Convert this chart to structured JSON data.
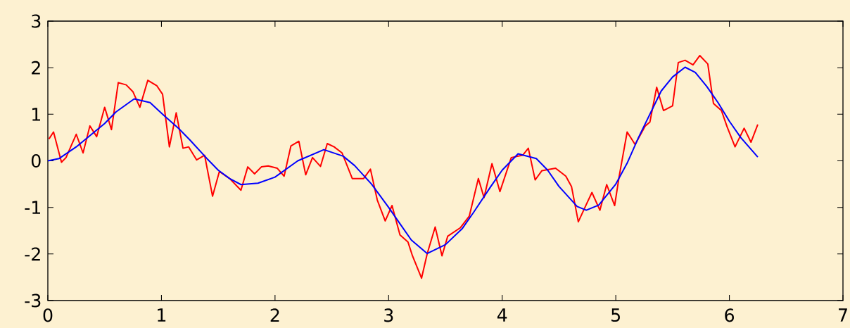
{
  "chart_data": {
    "type": "line",
    "xlim": [
      0,
      7
    ],
    "ylim": [
      -3,
      3
    ],
    "xticks": [
      0,
      1,
      2,
      3,
      4,
      5,
      6,
      7
    ],
    "yticks": [
      -3,
      -2,
      -1,
      0,
      1,
      2,
      3
    ],
    "grid": false,
    "marker": "none",
    "series": [
      {
        "color": "#ff0000",
        "x": [
          0.01,
          0.05,
          0.12,
          0.16,
          0.21,
          0.25,
          0.31,
          0.37,
          0.43,
          0.5,
          0.56,
          0.62,
          0.69,
          0.75,
          0.81,
          0.88,
          0.96,
          1.01,
          1.07,
          1.13,
          1.19,
          1.24,
          1.31,
          1.38,
          1.45,
          1.51,
          1.6,
          1.7,
          1.76,
          1.82,
          1.88,
          1.94,
          2.02,
          2.08,
          2.14,
          2.21,
          2.27,
          2.33,
          2.4,
          2.46,
          2.52,
          2.59,
          2.68,
          2.78,
          2.84,
          2.9,
          2.97,
          3.03,
          3.1,
          3.17,
          3.21,
          3.29,
          3.34,
          3.41,
          3.47,
          3.52,
          3.63,
          3.71,
          3.79,
          3.84,
          3.91,
          3.98,
          4.08,
          4.18,
          4.23,
          4.29,
          4.35,
          4.47,
          4.56,
          4.61,
          4.67,
          4.74,
          4.79,
          4.86,
          4.92,
          4.99,
          5.03,
          5.1,
          5.17,
          5.26,
          5.3,
          5.36,
          5.42,
          5.5,
          5.55,
          5.61,
          5.68,
          5.74,
          5.81,
          5.86,
          5.93,
          5.98,
          6.05,
          6.13,
          6.19,
          6.25
        ],
        "values": [
          0.47,
          0.62,
          -0.03,
          0.07,
          0.35,
          0.57,
          0.17,
          0.75,
          0.52,
          1.15,
          0.67,
          1.68,
          1.63,
          1.48,
          1.15,
          1.73,
          1.61,
          1.43,
          0.3,
          1.03,
          0.27,
          0.3,
          0.02,
          0.12,
          -0.76,
          -0.23,
          -0.38,
          -0.63,
          -0.13,
          -0.28,
          -0.13,
          -0.11,
          -0.16,
          -0.33,
          0.32,
          0.42,
          -0.3,
          0.07,
          -0.12,
          0.37,
          0.3,
          0.17,
          -0.38,
          -0.38,
          -0.18,
          -0.84,
          -1.29,
          -0.96,
          -1.59,
          -1.74,
          -2.04,
          -2.52,
          -1.99,
          -1.42,
          -2.04,
          -1.62,
          -1.44,
          -1.19,
          -0.38,
          -0.79,
          -0.06,
          -0.66,
          0.07,
          0.12,
          0.27,
          -0.41,
          -0.21,
          -0.16,
          -0.33,
          -0.55,
          -1.31,
          -0.94,
          -0.68,
          -1.06,
          -0.51,
          -0.96,
          -0.33,
          0.62,
          0.35,
          0.75,
          0.83,
          1.58,
          1.08,
          1.18,
          2.11,
          2.16,
          2.06,
          2.26,
          2.08,
          1.23,
          1.08,
          0.73,
          0.3,
          0.7,
          0.4,
          0.78
        ]
      },
      {
        "color": "#0000ff",
        "x": [
          0,
          0.1,
          0.25,
          0.4,
          0.5,
          0.6,
          0.76,
          0.9,
          1.02,
          1.15,
          1.25,
          1.4,
          1.5,
          1.6,
          1.7,
          1.85,
          2.0,
          2.2,
          2.43,
          2.6,
          2.7,
          2.85,
          3.0,
          3.1,
          3.2,
          3.34,
          3.5,
          3.65,
          3.75,
          3.9,
          4.0,
          4.14,
          4.3,
          4.4,
          4.5,
          4.66,
          4.74,
          4.85,
          5.0,
          5.1,
          5.2,
          5.3,
          5.4,
          5.5,
          5.61,
          5.7,
          5.8,
          5.9,
          6.0,
          6.1,
          6.25
        ],
        "values": [
          0,
          0.05,
          0.3,
          0.6,
          0.8,
          1.05,
          1.33,
          1.25,
          0.98,
          0.7,
          0.45,
          0.05,
          -0.2,
          -0.38,
          -0.51,
          -0.48,
          -0.35,
          0,
          0.24,
          0.1,
          -0.1,
          -0.5,
          -1.0,
          -1.35,
          -1.7,
          -1.99,
          -1.8,
          -1.45,
          -1.1,
          -0.55,
          -0.2,
          0.15,
          0.05,
          -0.2,
          -0.55,
          -0.98,
          -1.06,
          -0.95,
          -0.5,
          -0.05,
          0.5,
          1.0,
          1.5,
          1.8,
          2.01,
          1.9,
          1.6,
          1.25,
          0.85,
          0.5,
          0.08
        ]
      }
    ]
  }
}
